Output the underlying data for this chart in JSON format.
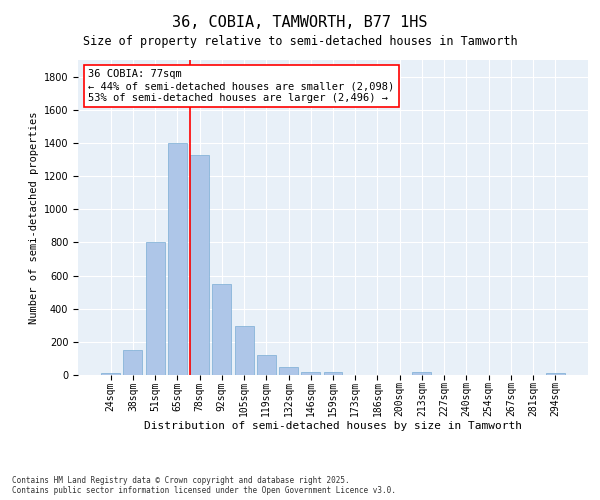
{
  "title": "36, COBIA, TAMWORTH, B77 1HS",
  "subtitle": "Size of property relative to semi-detached houses in Tamworth",
  "xlabel": "Distribution of semi-detached houses by size in Tamworth",
  "ylabel": "Number of semi-detached properties",
  "categories": [
    "24sqm",
    "38sqm",
    "51sqm",
    "65sqm",
    "78sqm",
    "92sqm",
    "105sqm",
    "119sqm",
    "132sqm",
    "146sqm",
    "159sqm",
    "173sqm",
    "186sqm",
    "200sqm",
    "213sqm",
    "227sqm",
    "240sqm",
    "254sqm",
    "267sqm",
    "281sqm",
    "294sqm"
  ],
  "values": [
    15,
    150,
    800,
    1400,
    1330,
    550,
    295,
    120,
    50,
    20,
    20,
    0,
    0,
    0,
    20,
    0,
    0,
    0,
    0,
    0,
    10
  ],
  "bar_color": "#aec6e8",
  "bar_edge_color": "#7aadd4",
  "red_line_index": 4,
  "annotation_text": "36 COBIA: 77sqm\n← 44% of semi-detached houses are smaller (2,098)\n53% of semi-detached houses are larger (2,496) →",
  "ylim": [
    0,
    1900
  ],
  "yticks": [
    0,
    200,
    400,
    600,
    800,
    1000,
    1200,
    1400,
    1600,
    1800
  ],
  "background_color": "#e8f0f8",
  "footnote": "Contains HM Land Registry data © Crown copyright and database right 2025.\nContains public sector information licensed under the Open Government Licence v3.0.",
  "title_fontsize": 11,
  "subtitle_fontsize": 8.5,
  "xlabel_fontsize": 8,
  "ylabel_fontsize": 7.5,
  "tick_fontsize": 7,
  "annotation_fontsize": 7.5,
  "footnote_fontsize": 5.5
}
